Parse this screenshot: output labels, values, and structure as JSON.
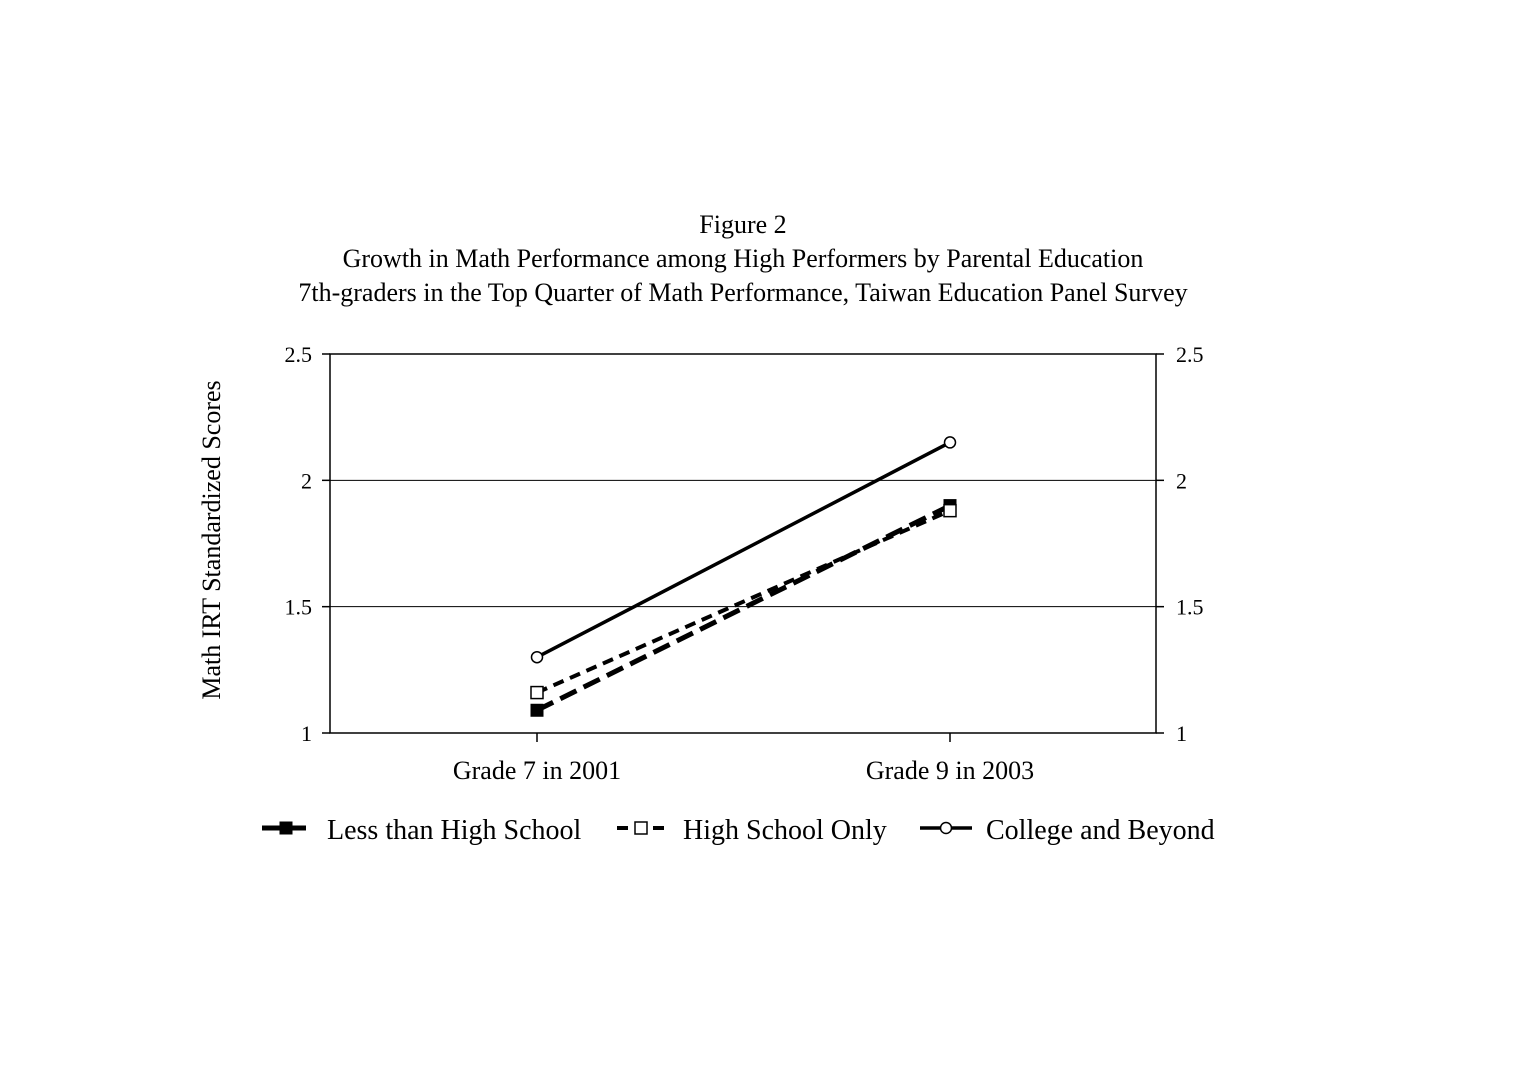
{
  "chart_data": {
    "type": "line",
    "title": "Figure 2",
    "subtitle": [
      "Growth in Math Performance among High Performers by Parental Education",
      "7th-graders in the Top Quarter of Math Performance, Taiwan Education Panel Survey"
    ],
    "xlabel": "",
    "ylabel": "Math IRT Standardized Scores",
    "categories": [
      "Grade 7 in 2001",
      "Grade 9 in 2003"
    ],
    "ylim": [
      1,
      2.5
    ],
    "yticks": [
      1,
      1.5,
      2,
      2.5
    ],
    "ytick_labels": [
      "1",
      "1.5",
      "2",
      "2.5"
    ],
    "secondary_y_axis": true,
    "grid": "horizontal",
    "legend_position": "bottom",
    "series": [
      {
        "name": "Less than High School",
        "values": [
          1.09,
          1.9
        ],
        "line_style": "long-dash",
        "marker": "filled-square",
        "color": "#000000"
      },
      {
        "name": "High School Only",
        "values": [
          1.16,
          1.88
        ],
        "line_style": "dash",
        "marker": "open-square",
        "color": "#000000"
      },
      {
        "name": "College and Beyond",
        "values": [
          1.3,
          2.15
        ],
        "line_style": "solid",
        "marker": "open-circle",
        "color": "#000000"
      }
    ]
  }
}
